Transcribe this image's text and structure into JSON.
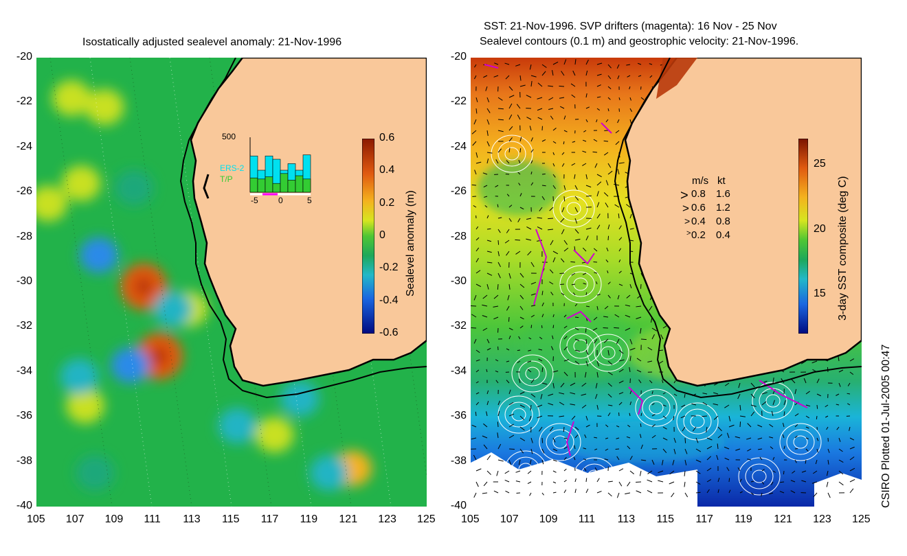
{
  "chart_data": [
    {
      "type": "heatmap",
      "title": "Isostatically adjusted sealevel anomaly: 21-Nov-1996",
      "xlabel": "",
      "ylabel": "",
      "xlim": [
        105,
        125
      ],
      "ylim": [
        -40,
        -20
      ],
      "x_ticks": [
        105,
        107,
        109,
        111,
        113,
        115,
        117,
        119,
        121,
        123,
        125
      ],
      "y_ticks": [
        -20,
        -22,
        -24,
        -26,
        -28,
        -30,
        -32,
        -34,
        -36,
        -38,
        -40
      ],
      "colorbar": {
        "label": "Sealevel anomaly (m)",
        "range": [
          -0.6,
          0.6
        ],
        "ticks": [
          0.6,
          0.4,
          0.2,
          0,
          -0.2,
          -0.4,
          -0.6
        ]
      },
      "inset_histogram": {
        "ymax_label": "500",
        "x_ticks": [
          -5,
          0,
          5
        ],
        "series": [
          {
            "name": "ERS-2",
            "color": "#00e0f0",
            "values": [
              330,
              200,
              330,
              300,
              200,
              260,
              200,
              340
            ]
          },
          {
            "name": "T/P",
            "color": "#33cc33",
            "values": [
              130,
              120,
              140,
              80,
              170,
              110,
              150,
              120
            ]
          }
        ]
      },
      "anomaly_spots": [
        {
          "lon": 110.5,
          "lat": -30.2,
          "value": 0.35
        },
        {
          "lon": 111.3,
          "lat": -33.3,
          "value": 0.3
        },
        {
          "lon": 107.3,
          "lat": -25.6,
          "value": 0.15
        },
        {
          "lon": 105.6,
          "lat": -26.5,
          "value": 0.12
        },
        {
          "lon": 106.8,
          "lat": -21.8,
          "value": 0.1
        },
        {
          "lon": 108.5,
          "lat": -22.2,
          "value": 0.1
        },
        {
          "lon": 107.5,
          "lat": -35.5,
          "value": 0.12
        },
        {
          "lon": 117.2,
          "lat": -36.8,
          "value": 0.12
        },
        {
          "lon": 121.2,
          "lat": -38.3,
          "value": 0.2
        },
        {
          "lon": 112.8,
          "lat": -31.2,
          "value": 0.1
        },
        {
          "lon": 108.2,
          "lat": -28.8,
          "value": -0.25
        },
        {
          "lon": 109.8,
          "lat": -33.7,
          "value": -0.2
        },
        {
          "lon": 107.2,
          "lat": -34.2,
          "value": -0.18
        },
        {
          "lon": 115.3,
          "lat": -36.4,
          "value": -0.15
        },
        {
          "lon": 112.0,
          "lat": -31.2,
          "value": -0.15
        },
        {
          "lon": 118.5,
          "lat": -35.2,
          "value": -0.12
        },
        {
          "lon": 120.0,
          "lat": -38.5,
          "value": -0.12
        },
        {
          "lon": 108.0,
          "lat": -38.5,
          "value": -0.1
        },
        {
          "lon": 110.0,
          "lat": -25.8,
          "value": -0.1
        }
      ]
    },
    {
      "type": "heatmap",
      "title_line1": "SST: 21-Nov-1996. SVP drifters (magenta): 16 Nov - 25 Nov",
      "title_line2": "Sealevel contours (0.1 m) and geostrophic velocity: 21-Nov-1996.",
      "xlim": [
        105,
        125
      ],
      "ylim": [
        -40,
        -20
      ],
      "x_ticks": [
        105,
        107,
        109,
        111,
        113,
        115,
        117,
        119,
        121,
        123,
        125
      ],
      "y_ticks": [
        -20,
        -22,
        -24,
        -26,
        -28,
        -30,
        -32,
        -34,
        -36,
        -38,
        -40
      ],
      "colorbar": {
        "label": "3-day SST composite (deg C)",
        "range": [
          12,
          27
        ],
        "ticks": [
          25,
          20,
          15
        ]
      },
      "velocity_legend": {
        "header_ms": "m/s",
        "header_kt": "kt",
        "rows": [
          {
            "ms": "0.8",
            "kt": "1.6"
          },
          {
            "ms": "0.6",
            "kt": "1.2"
          },
          {
            "ms": "0.4",
            "kt": "0.8"
          },
          {
            "ms": "0.2",
            "kt": "0.4"
          }
        ]
      }
    }
  ],
  "credit": "CSIRO Plotted 01-Jul-2005 00:47",
  "colors": {
    "land": "#f9c89a",
    "coast": "#000000",
    "contour": "#ffffff",
    "drifter": "#d000d0"
  }
}
